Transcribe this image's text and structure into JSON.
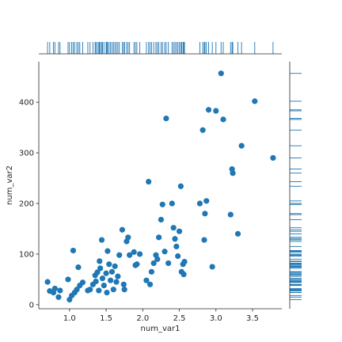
{
  "chart_data": {
    "type": "scatter",
    "subtype": "jointplot-with-rug",
    "xlabel": "num_var1",
    "ylabel": "num_var2",
    "xlim": [
      0.58,
      3.9
    ],
    "ylim": [
      -8,
      480
    ],
    "x_ticks": [
      1.0,
      1.5,
      2.0,
      2.5,
      3.0,
      3.5
    ],
    "x_tick_labels": [
      "1.0",
      "1.5",
      "2.0",
      "2.5",
      "3.0",
      "3.5"
    ],
    "y_ticks": [
      0,
      100,
      200,
      300,
      400
    ],
    "y_tick_labels": [
      "0",
      "100",
      "200",
      "300",
      "400"
    ],
    "grid": false,
    "marginal": "rug",
    "colors": {
      "points": "#1f77b4",
      "axes": "#262626"
    },
    "points": [
      {
        "x": 0.7,
        "y": 45
      },
      {
        "x": 0.73,
        "y": 27
      },
      {
        "x": 0.78,
        "y": 24
      },
      {
        "x": 0.8,
        "y": 32
      },
      {
        "x": 0.85,
        "y": 15
      },
      {
        "x": 0.87,
        "y": 28
      },
      {
        "x": 0.98,
        "y": 50
      },
      {
        "x": 1.0,
        "y": 10
      },
      {
        "x": 1.03,
        "y": 18
      },
      {
        "x": 1.05,
        "y": 107
      },
      {
        "x": 1.07,
        "y": 24
      },
      {
        "x": 1.1,
        "y": 30
      },
      {
        "x": 1.12,
        "y": 74
      },
      {
        "x": 1.14,
        "y": 38
      },
      {
        "x": 1.18,
        "y": 44
      },
      {
        "x": 1.25,
        "y": 28
      },
      {
        "x": 1.28,
        "y": 30
      },
      {
        "x": 1.32,
        "y": 40
      },
      {
        "x": 1.35,
        "y": 58
      },
      {
        "x": 1.36,
        "y": 46
      },
      {
        "x": 1.38,
        "y": 64
      },
      {
        "x": 1.4,
        "y": 28
      },
      {
        "x": 1.41,
        "y": 86
      },
      {
        "x": 1.42,
        "y": 72
      },
      {
        "x": 1.44,
        "y": 128
      },
      {
        "x": 1.45,
        "y": 52
      },
      {
        "x": 1.47,
        "y": 38
      },
      {
        "x": 1.5,
        "y": 62
      },
      {
        "x": 1.51,
        "y": 24
      },
      {
        "x": 1.52,
        "y": 106
      },
      {
        "x": 1.54,
        "y": 80
      },
      {
        "x": 1.56,
        "y": 48
      },
      {
        "x": 1.58,
        "y": 65
      },
      {
        "x": 1.6,
        "y": 30
      },
      {
        "x": 1.62,
        "y": 76
      },
      {
        "x": 1.64,
        "y": 45
      },
      {
        "x": 1.66,
        "y": 56
      },
      {
        "x": 1.68,
        "y": 98
      },
      {
        "x": 1.72,
        "y": 148
      },
      {
        "x": 1.74,
        "y": 40
      },
      {
        "x": 1.75,
        "y": 30
      },
      {
        "x": 1.78,
        "y": 125
      },
      {
        "x": 1.8,
        "y": 133
      },
      {
        "x": 1.82,
        "y": 98
      },
      {
        "x": 1.88,
        "y": 104
      },
      {
        "x": 1.9,
        "y": 78
      },
      {
        "x": 1.92,
        "y": 80
      },
      {
        "x": 1.96,
        "y": 100
      },
      {
        "x": 2.05,
        "y": 48
      },
      {
        "x": 2.08,
        "y": 243
      },
      {
        "x": 2.1,
        "y": 40
      },
      {
        "x": 2.12,
        "y": 65
      },
      {
        "x": 2.15,
        "y": 82
      },
      {
        "x": 2.18,
        "y": 98
      },
      {
        "x": 2.2,
        "y": 90
      },
      {
        "x": 2.22,
        "y": 133
      },
      {
        "x": 2.25,
        "y": 168
      },
      {
        "x": 2.27,
        "y": 198
      },
      {
        "x": 2.3,
        "y": 105
      },
      {
        "x": 2.32,
        "y": 368
      },
      {
        "x": 2.35,
        "y": 82
      },
      {
        "x": 2.4,
        "y": 200
      },
      {
        "x": 2.42,
        "y": 152
      },
      {
        "x": 2.44,
        "y": 130
      },
      {
        "x": 2.46,
        "y": 115
      },
      {
        "x": 2.48,
        "y": 96
      },
      {
        "x": 2.5,
        "y": 145
      },
      {
        "x": 2.52,
        "y": 234
      },
      {
        "x": 2.53,
        "y": 65
      },
      {
        "x": 2.55,
        "y": 80
      },
      {
        "x": 2.56,
        "y": 60
      },
      {
        "x": 2.57,
        "y": 85
      },
      {
        "x": 2.78,
        "y": 200
      },
      {
        "x": 2.82,
        "y": 345
      },
      {
        "x": 2.84,
        "y": 128
      },
      {
        "x": 2.85,
        "y": 180
      },
      {
        "x": 2.87,
        "y": 205
      },
      {
        "x": 2.9,
        "y": 385
      },
      {
        "x": 2.95,
        "y": 75
      },
      {
        "x": 3.0,
        "y": 383
      },
      {
        "x": 3.07,
        "y": 457
      },
      {
        "x": 3.1,
        "y": 366
      },
      {
        "x": 3.2,
        "y": 178
      },
      {
        "x": 3.22,
        "y": 268
      },
      {
        "x": 3.23,
        "y": 260
      },
      {
        "x": 3.3,
        "y": 140
      },
      {
        "x": 3.35,
        "y": 314
      },
      {
        "x": 3.53,
        "y": 402
      },
      {
        "x": 3.78,
        "y": 290
      }
    ]
  }
}
